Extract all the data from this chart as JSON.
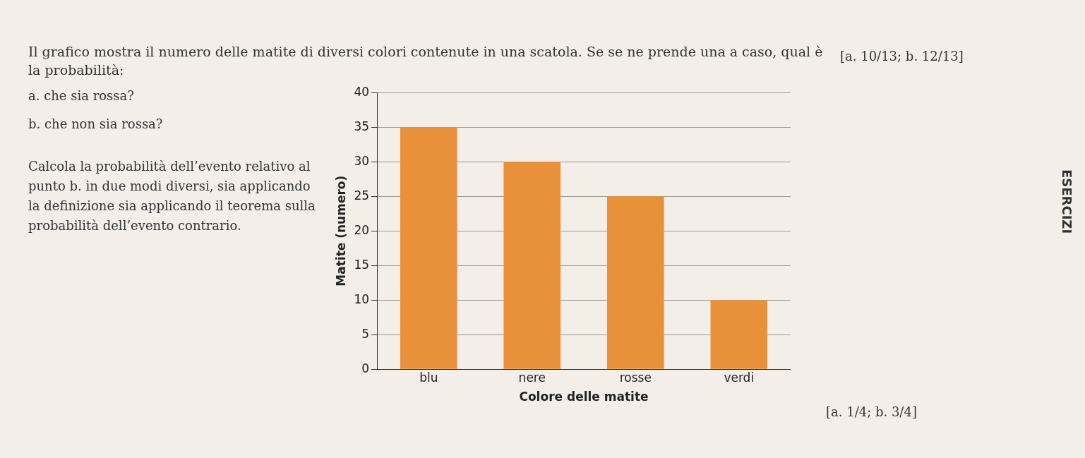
{
  "chart_data": {
    "type": "bar",
    "title": "Il grafico mostra il numero delle matite di diversi colori contenute in una scatola. Se se ne prende una a caso, qual è la probabilità:",
    "categories": [
      "blu",
      "nere",
      "rosse",
      "verdi"
    ],
    "values": [
      35,
      30,
      25,
      10
    ],
    "color": "#e8913a",
    "xlabel": "Colore delle matite",
    "ylabel": "Matite (numero)",
    "ylim": [
      0,
      40
    ],
    "yticks": [
      0,
      5,
      10,
      15,
      20,
      25,
      30,
      35,
      40
    ],
    "grid": "y",
    "annotations": [
      "[a. 10/13; b. 12/13]",
      "a. che sia rossa?",
      "b. che non sia rossa?",
      "Calcola la probabilità dell’evento relativo al punto b. in due modi diversi, sia applicando la definizione sia applicando il teorema sulla probabilità dell’evento contrario.",
      "[a. 1/4; b. 3/4]",
      "ESERCIZI"
    ]
  }
}
